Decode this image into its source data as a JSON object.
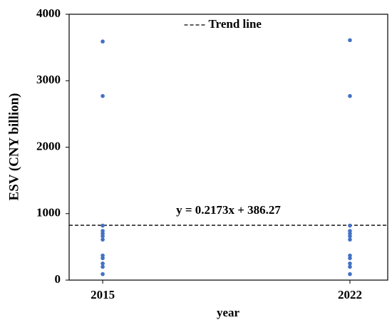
{
  "chart_data": {
    "type": "scatter",
    "x_label": "year",
    "y_label": "ESV (CNY billion)",
    "xlim": [
      2014.05,
      2023.07
    ],
    "xticks": [
      2015,
      2022
    ],
    "ylim": [
      0,
      4000
    ],
    "yticks": [
      0,
      1000,
      2000,
      3000,
      4000
    ],
    "series": [
      {
        "color": "#4472c4",
        "x": [
          2015,
          2015,
          2015,
          2015,
          2015,
          2015,
          2015,
          2015,
          2015,
          2015,
          2015,
          2015,
          2022,
          2022,
          2022,
          2022,
          2022,
          2022,
          2022,
          2022,
          2022,
          2022,
          2022,
          2022
        ],
        "y": [
          3590,
          2770,
          820,
          740,
          700,
          660,
          610,
          370,
          330,
          250,
          200,
          90,
          3610,
          2770,
          820,
          740,
          700,
          660,
          610,
          370,
          330,
          250,
          200,
          90
        ]
      }
    ],
    "trend_line": {
      "name": "Trend line",
      "equation": "y = 0.2173x + 386.27",
      "color": "#000000",
      "x": [
        2014.05,
        2023.07
      ],
      "y": [
        825,
        825
      ]
    },
    "legend": "top"
  }
}
